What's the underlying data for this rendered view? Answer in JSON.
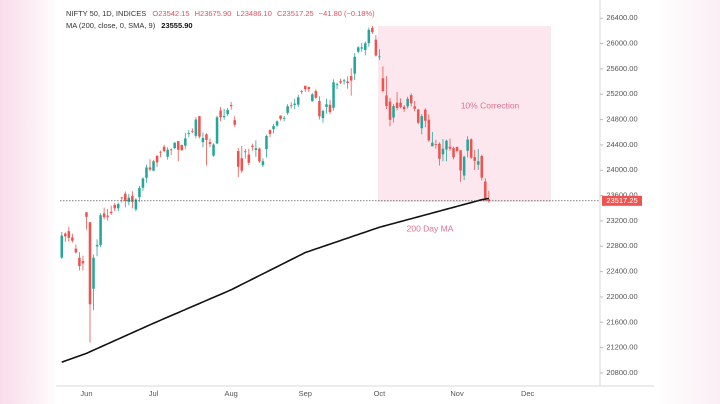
{
  "chart_data": {
    "type": "candlestick",
    "categories": [
      null,
      null,
      null,
      null,
      null,
      null,
      null,
      "Jun",
      null,
      null,
      null,
      null,
      null,
      null,
      null,
      null,
      null,
      null,
      null,
      null,
      null,
      null,
      null,
      null,
      null,
      null,
      "Jul",
      null,
      null,
      null,
      null,
      null,
      null,
      null,
      null,
      null,
      null,
      null,
      null,
      null,
      null,
      null,
      null,
      null,
      null,
      null,
      null,
      null,
      "Aug",
      null,
      null,
      null,
      null,
      null,
      null,
      null,
      null,
      null,
      null,
      null,
      null,
      null,
      null,
      null,
      null,
      null,
      null,
      null,
      null,
      "Sep",
      null,
      null,
      null,
      null,
      null,
      null,
      null,
      null,
      null,
      null,
      null,
      null,
      null,
      null,
      null,
      null,
      null,
      null,
      null,
      null,
      "Oct",
      null,
      null,
      null,
      null,
      null,
      null,
      null,
      null,
      null,
      null,
      null,
      null,
      null,
      null,
      null,
      null,
      null,
      null,
      null,
      null,
      null,
      "Nov",
      null,
      null,
      null,
      null,
      null,
      null,
      null,
      null,
      null,
      null,
      null,
      null,
      null,
      null,
      null,
      null,
      null,
      null,
      null,
      "Dec",
      null,
      null,
      null,
      null,
      null,
      null,
      null,
      null,
      null,
      null,
      null,
      null,
      null,
      null,
      null,
      null,
      null,
      null,
      null,
      null
    ],
    "series": [
      {
        "name": "NIFTY 50, 1D, INDICES",
        "up_color": "#26a69a",
        "down_color": "#ef5350",
        "open": [
          22620,
          23000,
          23038,
          22940,
          22762,
          22617,
          22568,
          23337,
          23180,
          22129,
          22798,
          22821,
          23319,
          23284,
          23344,
          23453,
          23400,
          23570,
          23629,
          23500,
          23596,
          23382,
          23577,
          23723,
          23881,
          24045,
          23992,
          24228,
          24291,
          24370,
          24214,
          24330,
          24351,
          24459,
          24400,
          24388,
          24572,
          24615,
          24543,
          24854,
          24445,
          24568,
          24444,
          24231,
          24423,
          24943,
          24839,
          24886,
          25030,
          24790,
          24303,
          24190,
          24289,
          24248,
          24386,
          24320,
          24342,
          24082,
          24334,
          24637,
          24648,
          24707,
          24863,
          24812,
          24906,
          25024,
          25031,
          25035,
          25249,
          25333,
          25313,
          25089,
          25250,
          25093,
          24823,
          24999,
          25034,
          24986,
          25352,
          25406,
          25404,
          25402,
          25487,
          25525,
          25872,
          25921,
          25899,
          26006,
          26248,
          26061,
          25788,
          25453,
          25181,
          25084,
          24832,
          25066,
          25067,
          25003,
          25008,
          25186,
          25008,
          24959,
          24664,
          24956,
          24798,
          24378,
          24412,
          24418,
          24252,
          24329,
          24371,
          24349,
          24368,
          24315,
          23916,
          24308,
          24489,
          24207,
          24087,
          24225,
          23823,
          23542.15,
          null,
          null,
          null,
          null,
          null,
          null,
          null,
          null,
          null,
          null,
          null,
          null,
          null,
          null,
          null,
          null,
          null,
          null,
          null,
          null,
          null,
          null,
          null,
          null,
          null,
          null,
          null,
          null,
          null,
          null,
          null
        ],
        "high": [
          23026,
          23020,
          23110,
          22998,
          22826,
          22705,
          22653,
          23338,
          23180,
          22670,
          22910,
          23320,
          23411,
          23390,
          23441,
          23481,
          23490,
          23579,
          23665,
          23625,
          23668,
          23558,
          23754,
          23889,
          24087,
          24174,
          24164,
          24237,
          24309,
          24401,
          24363,
          24345,
          24444,
          24461,
          24403,
          24592,
          24636,
          24661,
          24837,
          24854,
          24596,
          24583,
          24504,
          24426,
          24862,
          24999,
          24971,
          24985,
          25078,
          24851,
          24350,
          24383,
          24337,
          24340,
          24419,
          24473,
          24360,
          24190,
          24563,
          24639,
          24734,
          24787,
          24867,
          24858,
          25043,
          25074,
          25130,
          25192,
          25268,
          25334,
          25321,
          25217,
          25275,
          25168,
          24957,
          25130,
          25113,
          25434,
          25382,
          25446,
          25441,
          25482,
          25611,
          25849,
          25957,
          26012,
          26033,
          26251,
          26277,
          26134,
          25907,
          25639,
          25485,
          25143,
          25044,
          25234,
          25134,
          25028,
          25159,
          25213,
          25093,
          24968,
          24886,
          24979,
          24882,
          24605,
          24481,
          24440,
          24492,
          24484,
          24499,
          24372,
          24372,
          24316,
          24229,
          24537,
          24503,
          24322,
          24336,
          24243,
          23874,
          23675.9,
          null,
          null,
          null,
          null,
          null,
          null,
          null,
          null,
          null,
          null,
          null,
          null,
          null,
          null,
          null,
          null,
          null,
          null,
          null,
          null,
          null,
          null,
          null,
          null,
          null,
          null,
          null,
          null,
          null,
          null,
          null
        ],
        "low": [
          22600,
          22870,
          22872,
          22858,
          22685,
          22417,
          22417,
          23062,
          21281,
          21791,
          22642,
          22789,
          23227,
          23206,
          23295,
          23354,
          23354,
          23490,
          23413,
          23447,
          23398,
          23350,
          23500,
          23674,
          23805,
          23985,
          23992,
          24056,
          24208,
          24281,
          24168,
          24240,
          24331,
          24141,
          24307,
          24331,
          24522,
          24587,
          24505,
          24504,
          24363,
          24074,
          24362,
          24211,
          24410,
          24774,
          24798,
          24856,
          24956,
          24686,
          23893,
          23960,
          24184,
          24079,
          24311,
          24212,
          24116,
          24050,
          24204,
          24522,
          24581,
          24684,
          24784,
          24771,
          24874,
          24973,
          24965,
          24998,
          25199,
          25235,
          25235,
          25083,
          25127,
          24801,
          24754,
          24896,
          24885,
          24942,
          25282,
          25361,
          25353,
          25286,
          25177,
          25426,
          25847,
          25871,
          25813,
          25951,
          26151,
          25794,
          25739,
          25230,
          24967,
          24694,
          24756,
          24948,
          24979,
          24920,
          24974,
          25008,
          24929,
          24728,
          24567,
          24679,
          24446,
          24378,
          24341,
          24074,
          24140,
          24140,
          24307,
          24172,
          24280,
          23817,
          23842,
          24204,
          24179,
          24004,
          24004,
          23839,
          23510,
          23486.1,
          null,
          null,
          null,
          null,
          null,
          null,
          null,
          null,
          null,
          null,
          null,
          null,
          null,
          null,
          null,
          null,
          null,
          null,
          null,
          null,
          null,
          null,
          null,
          null,
          null,
          null,
          null,
          null,
          null,
          null,
          null
        ],
        "close": [
          22968,
          22957,
          22932,
          22888,
          22704,
          22488,
          22531,
          23264,
          21884,
          22620,
          22821,
          23290,
          23259,
          23265,
          23323,
          23399,
          23466,
          23558,
          23516,
          23567,
          23501,
          23538,
          23721,
          23869,
          24044,
          24011,
          24142,
          24124,
          24286,
          24302,
          24324,
          24320,
          24433,
          24324,
          24316,
          24502,
          24587,
          24613,
          24801,
          24531,
          24509,
          24479,
          24413,
          24406,
          24835,
          24836,
          24857,
          24951,
          25011,
          24718,
          24055,
          23993,
          24298,
          24117,
          24368,
          24347,
          24140,
          24144,
          24541,
          24573,
          24698,
          24771,
          24811,
          24823,
          25010,
          25017,
          25052,
          25152,
          25236,
          25279,
          25280,
          25198,
          25145,
          24852,
          24936,
          25041,
          24918,
          25389,
          25357,
          25384,
          25419,
          25377,
          25416,
          25791,
          25939,
          25940,
          26004,
          26216,
          26179,
          25811,
          25797,
          25250,
          25015,
          24796,
          25013,
          24982,
          24998,
          24964,
          25128,
          25057,
          24971,
          24750,
          24854,
          24781,
          24472,
          24435,
          24399,
          24181,
          24339,
          24466,
          24341,
          24205,
          24304,
          23995,
          24213,
          24484,
          24199,
          24148,
          24141,
          23883,
          23559,
          23517.25,
          null,
          null,
          null,
          null,
          null,
          null,
          null,
          null,
          null,
          null,
          null,
          null,
          null,
          null,
          null,
          null,
          null,
          null,
          null,
          null,
          null,
          null,
          null,
          null,
          null,
          null,
          null,
          null,
          null,
          null,
          null
        ]
      },
      {
        "name": "MA (200, close, 0, SMA, 9)",
        "type": "line",
        "color": "#111111",
        "values": [
          20970,
          20990,
          21010,
          21030,
          21050,
          21070,
          21090,
          21110,
          21135,
          21160,
          21185,
          21210,
          21235,
          21260,
          21285,
          21310,
          21335,
          21360,
          21385,
          21410,
          21435,
          21460,
          21485,
          21510,
          21535,
          21560,
          21585,
          21609,
          21633,
          21657,
          21681,
          21705,
          21729,
          21753,
          21777,
          21801,
          21825,
          21849,
          21873,
          21897,
          21921,
          21945,
          21969,
          21993,
          22017,
          22041,
          22065,
          22089,
          22113,
          22141,
          22169,
          22197,
          22225,
          22253,
          22281,
          22309,
          22337,
          22365,
          22393,
          22421,
          22449,
          22477,
          22505,
          22533,
          22561,
          22589,
          22617,
          22645,
          22673,
          22701,
          22720,
          22739,
          22758,
          22777,
          22796,
          22815,
          22834,
          22853,
          22872,
          22891,
          22910,
          22929,
          22948,
          22967,
          22986,
          23005,
          23024,
          23043,
          23062,
          23081,
          23100,
          23115,
          23130,
          23145,
          23160,
          23175,
          23190,
          23205,
          23220,
          23235,
          23250,
          23265,
          23280,
          23295,
          23310,
          23325,
          23340,
          23355,
          23370,
          23385,
          23400,
          23415,
          23430,
          23445,
          23460,
          23475,
          23490,
          23505,
          23520,
          23535,
          23545,
          23555.9,
          null,
          null,
          null,
          null,
          null,
          null,
          null,
          null,
          null,
          null,
          null,
          null,
          null,
          null,
          null,
          null,
          null,
          null,
          null,
          null,
          null,
          null,
          null,
          null,
          null,
          null,
          null,
          null,
          null,
          null,
          null
        ]
      }
    ],
    "header_values": [
      "O23542.15",
      "H23675.90",
      "L23486.10",
      "C23517.25",
      "−41.80 (−0.18%)"
    ],
    "ma_value_label": "23555.90",
    "last_price_label": "23517.25",
    "annotations": [
      "10% Correction",
      "200 Day MA"
    ],
    "ylim": [
      20610,
      26640
    ],
    "yticks": [
      {
        "value": 20800,
        "label": "20800.00"
      },
      {
        "value": 21200,
        "label": "21200.00"
      },
      {
        "value": 21600,
        "label": "21600.00"
      },
      {
        "value": 22000,
        "label": "22000.00"
      },
      {
        "value": 22400,
        "label": "22400.00"
      },
      {
        "value": 22800,
        "label": "22800.00"
      },
      {
        "value": 23200,
        "label": "23200.00"
      },
      {
        "value": 23600,
        "label": "23600.00"
      },
      {
        "value": 24000,
        "label": "24000.00"
      },
      {
        "value": 24400,
        "label": "24400.00"
      },
      {
        "value": 24800,
        "label": "24800.00"
      },
      {
        "value": 25200,
        "label": "25200.00"
      },
      {
        "value": 25600,
        "label": "25600.00"
      },
      {
        "value": 26000,
        "label": "26000.00"
      },
      {
        "value": 26400,
        "label": "26400.00"
      }
    ],
    "grid": false
  }
}
